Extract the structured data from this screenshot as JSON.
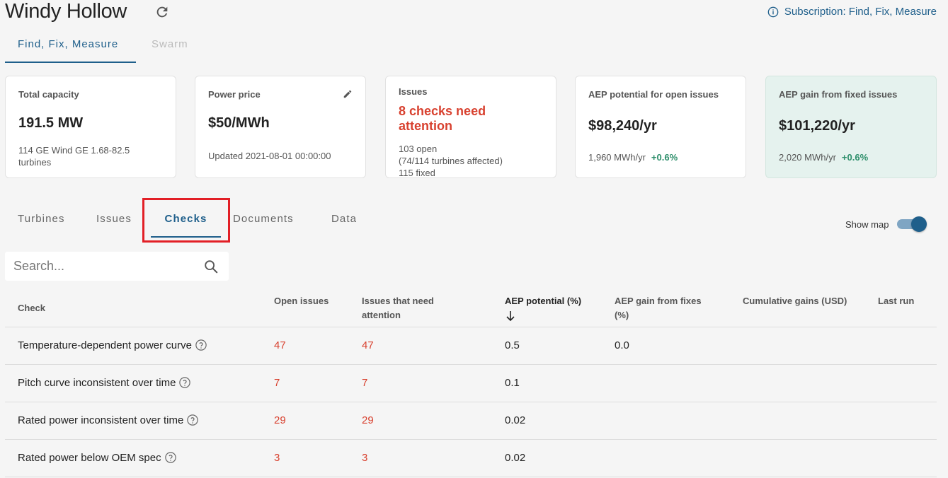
{
  "header": {
    "title": "Windy Hollow",
    "subscription": "Subscription: Find, Fix, Measure"
  },
  "top_tabs": [
    {
      "label": "Find, Fix, Measure",
      "active": true
    },
    {
      "label": "Swarm",
      "active": false
    }
  ],
  "cards": {
    "capacity": {
      "label": "Total capacity",
      "value": "191.5 MW",
      "detail": "114 GE Wind GE 1.68-82.5 turbines"
    },
    "price": {
      "label": "Power price",
      "value": "$50/MWh",
      "detail": "Updated 2021-08-01 00:00:00"
    },
    "issues": {
      "label": "Issues",
      "attention": "8 checks need attention",
      "open": "103 open",
      "affected": "(74/114 turbines affected)",
      "fixed": "115 fixed"
    },
    "aep_potential": {
      "label": "AEP potential for open issues",
      "value": "$98,240/yr",
      "mwh": "1,960 MWh/yr",
      "pct": "+0.6%"
    },
    "aep_gain": {
      "label": "AEP gain from fixed issues",
      "value": "$101,220/yr",
      "mwh": "2,020 MWh/yr",
      "pct": "+0.6%"
    }
  },
  "section_tabs": [
    {
      "label": "Turbines"
    },
    {
      "label": "Issues"
    },
    {
      "label": "Checks"
    },
    {
      "label": "Documents"
    },
    {
      "label": "Data"
    }
  ],
  "show_map": {
    "label": "Show map",
    "on": true
  },
  "search": {
    "placeholder": "Search..."
  },
  "table": {
    "headers": {
      "check": "Check",
      "open": "Open issues",
      "attention_1": "Issues that need",
      "attention_2": "attention",
      "aep": "AEP potential (%)",
      "gain_1": "AEP gain from fixes",
      "gain_2": "(%)",
      "cumulative": "Cumulative gains (USD)",
      "last_run": "Last run"
    },
    "rows": [
      {
        "check": "Temperature-dependent power curve",
        "open": "47",
        "attention": "47",
        "aep": "0.5",
        "gain": "0.0"
      },
      {
        "check": "Pitch curve inconsistent over time",
        "open": "7",
        "attention": "7",
        "aep": "0.1",
        "gain": ""
      },
      {
        "check": "Rated power inconsistent over time",
        "open": "29",
        "attention": "29",
        "aep": "0.02",
        "gain": ""
      },
      {
        "check": "Rated power below OEM spec",
        "open": "3",
        "attention": "3",
        "aep": "0.02",
        "gain": ""
      }
    ]
  },
  "colors": {
    "accent": "#1f5f8b",
    "alert": "#d8412f",
    "positive": "#2e8f6b",
    "highlight": "#e21f26"
  }
}
